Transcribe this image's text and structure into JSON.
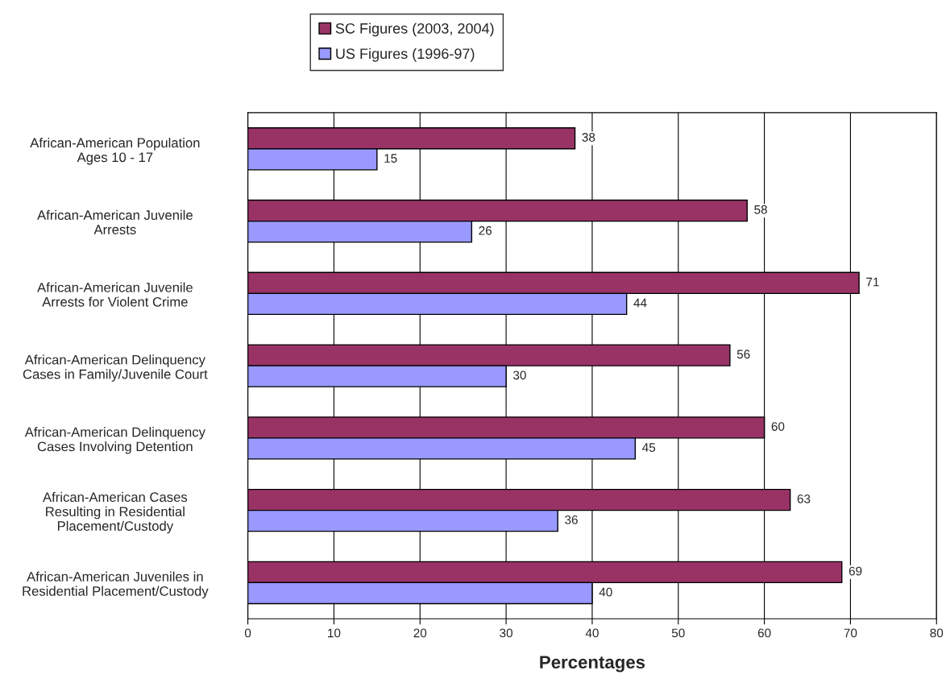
{
  "chart_data": {
    "type": "bar",
    "orientation": "horizontal",
    "xlabel": "Percentages",
    "categories": [
      "African-American Population\nAges 10 - 17",
      "African-American Juvenile\nArrests",
      "African-American Juvenile\nArrests for Violent Crime",
      "African-American Delinquency\nCases in Family/Juvenile Court",
      "African-American Delinquency\nCases Involving Detention",
      "African-American Cases\nResulting in Residential\nPlacement/Custody",
      "African-American Juveniles in\nResidential Placement/Custody"
    ],
    "series": [
      {
        "name": "SC Figures (2003, 2004)",
        "color": "#993366",
        "values": [
          38,
          58,
          71,
          56,
          60,
          63,
          69
        ]
      },
      {
        "name": "US Figures (1996-97)",
        "color": "#9999ff",
        "values": [
          15,
          26,
          44,
          30,
          45,
          36,
          40
        ]
      }
    ],
    "xlim": [
      0,
      80
    ],
    "xticks": [
      0,
      10,
      20,
      30,
      40,
      50,
      60,
      70,
      80
    ],
    "grid": "x",
    "legend": "top",
    "data_labels": true
  }
}
